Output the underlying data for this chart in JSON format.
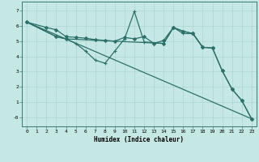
{
  "xlabel": "Humidex (Indice chaleur)",
  "xlim": [
    -0.5,
    23.5
  ],
  "ylim": [
    -0.6,
    7.6
  ],
  "xticks": [
    0,
    1,
    2,
    3,
    4,
    5,
    6,
    7,
    8,
    9,
    10,
    11,
    12,
    13,
    14,
    15,
    16,
    17,
    18,
    19,
    20,
    21,
    22,
    23
  ],
  "yticks": [
    0,
    1,
    2,
    3,
    4,
    5,
    6,
    7
  ],
  "ytick_labels": [
    "-0",
    "1",
    "2",
    "3",
    "4",
    "5",
    "6",
    "7"
  ],
  "bg_color": "#c5e8e5",
  "line_color": "#2d7068",
  "grid_color": "#aed4d0",
  "lines": [
    {
      "x": [
        0,
        2,
        3,
        4,
        5,
        6,
        7,
        8,
        9,
        10,
        11,
        12,
        13,
        14,
        15,
        16,
        17,
        18,
        19,
        20,
        21,
        22,
        23
      ],
      "y": [
        6.25,
        5.9,
        5.75,
        5.3,
        5.25,
        5.2,
        5.1,
        5.05,
        5.0,
        5.25,
        5.15,
        5.3,
        4.85,
        5.05,
        5.9,
        5.65,
        5.5,
        4.6,
        4.55,
        3.05,
        1.85,
        1.1,
        -0.1
      ],
      "marker": "D",
      "ms": 2.0,
      "lw": 0.9
    },
    {
      "x": [
        0,
        3,
        4,
        5,
        6,
        7,
        8,
        9,
        10,
        11,
        12,
        14,
        15,
        16,
        17,
        18
      ],
      "y": [
        6.25,
        5.3,
        5.15,
        4.85,
        4.35,
        3.75,
        3.55,
        4.35,
        5.15,
        6.95,
        4.95,
        4.85,
        5.9,
        5.5,
        5.5,
        4.6
      ],
      "marker": "+",
      "ms": 3.5,
      "lw": 0.9
    },
    {
      "x": [
        0,
        23
      ],
      "y": [
        6.25,
        -0.1
      ],
      "marker": null,
      "ms": 0,
      "lw": 0.9
    },
    {
      "x": [
        0,
        3,
        4,
        14,
        15,
        16,
        17,
        18,
        19,
        20,
        21,
        22,
        23
      ],
      "y": [
        6.25,
        5.3,
        5.15,
        4.85,
        5.9,
        5.65,
        5.5,
        4.6,
        4.55,
        3.05,
        1.85,
        1.1,
        -0.1
      ],
      "marker": "D",
      "ms": 2.0,
      "lw": 0.9
    }
  ]
}
